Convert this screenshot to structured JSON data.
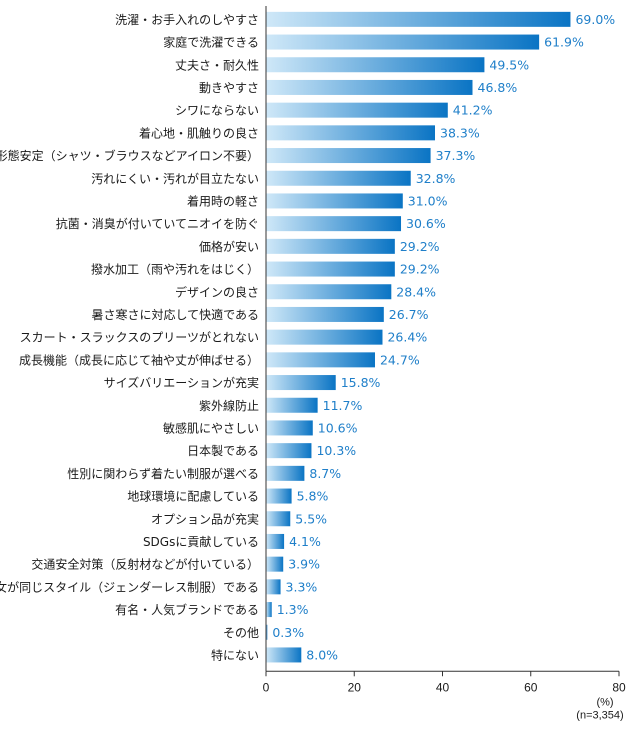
{
  "chart_data": {
    "type": "bar",
    "orientation": "horizontal",
    "unit_label": "(%)",
    "sample_note": "(n=3,354)",
    "xlim": [
      0,
      80
    ],
    "xticks": [
      "0",
      "20",
      "40",
      "60",
      "80"
    ],
    "grid": false,
    "colors": {
      "bar_light": "#cfe8f8",
      "bar_dark": "#0a74c4",
      "value_text": "#1f7fc9"
    },
    "categories": [
      "洗濯・お手入れのしやすさ",
      "家庭で洗濯できる",
      "丈夫さ・耐久性",
      "動きやすさ",
      "シワにならない",
      "着心地・肌触りの良さ",
      "形態安定（シャツ・ブラウスなどアイロン不要）",
      "汚れにくい・汚れが目立たない",
      "着用時の軽さ",
      "抗菌・消臭が付いていてニオイを防ぐ",
      "価格が安い",
      "撥水加工（雨や汚れをはじく）",
      "デザインの良さ",
      "暑さ寒さに対応して快適である",
      "スカート・スラックスのプリーツがとれない",
      "成長機能（成長に応じて袖や丈が伸ばせる）",
      "サイズバリエーションが充実",
      "紫外線防止",
      "敏感肌にやさしい",
      "日本製である",
      "性別に関わらず着たい制服が選べる",
      "地球環境に配慮している",
      "オプション品が充実",
      "SDGsに貢献している",
      "交通安全対策（反射材などが付いている）",
      "男女が同じスタイル（ジェンダーレス制服）である",
      "有名・人気ブランドである",
      "その他",
      "特にない"
    ],
    "values": [
      69.0,
      61.9,
      49.5,
      46.8,
      41.2,
      38.3,
      37.3,
      32.8,
      31.0,
      30.6,
      29.2,
      29.2,
      28.4,
      26.7,
      26.4,
      24.7,
      15.8,
      11.7,
      10.6,
      10.3,
      8.7,
      5.8,
      5.5,
      4.1,
      3.9,
      3.3,
      1.3,
      0.3,
      8.0
    ],
    "value_labels": [
      "69.0%",
      "61.9%",
      "49.5%",
      "46.8%",
      "41.2%",
      "38.3%",
      "37.3%",
      "32.8%",
      "31.0%",
      "30.6%",
      "29.2%",
      "29.2%",
      "28.4%",
      "26.7%",
      "26.4%",
      "24.7%",
      "15.8%",
      "11.7%",
      "10.6%",
      "10.3%",
      "8.7%",
      "5.8%",
      "5.5%",
      "4.1%",
      "3.9%",
      "3.3%",
      "1.3%",
      "0.3%",
      "8.0%"
    ]
  }
}
